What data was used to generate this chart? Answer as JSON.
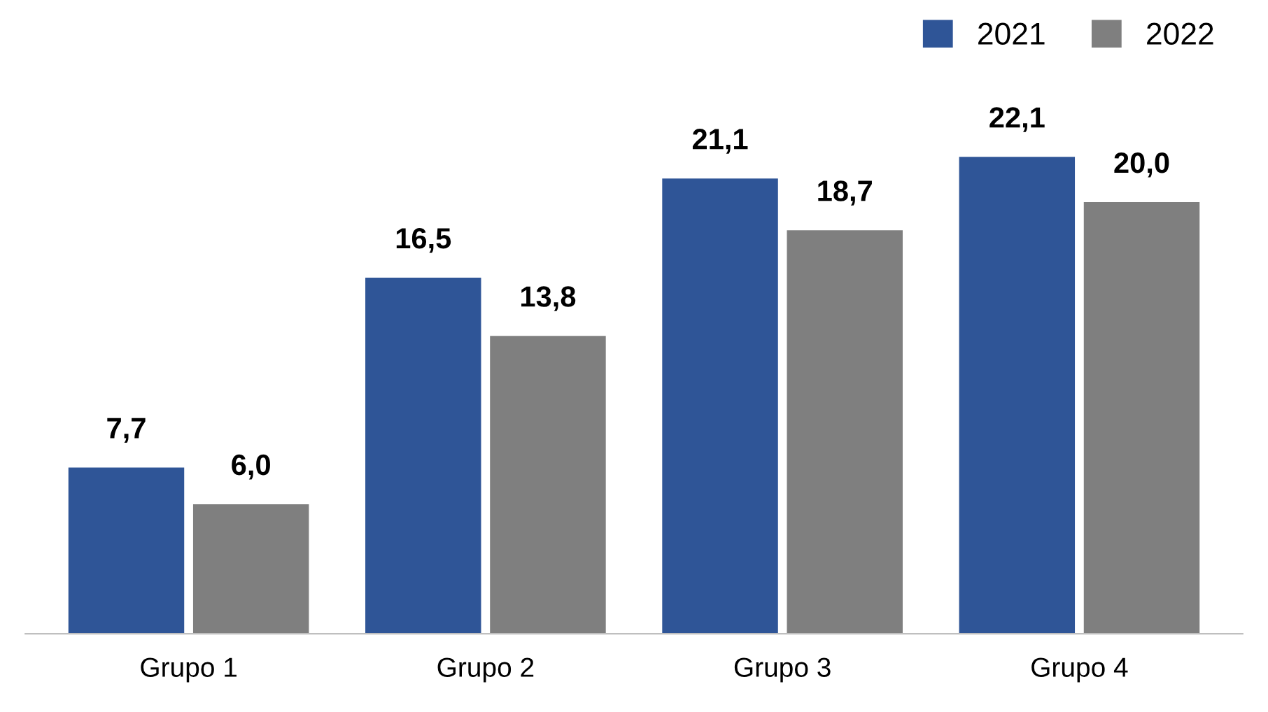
{
  "chart_data": {
    "type": "bar",
    "categories": [
      "Grupo 1",
      "Grupo 2",
      "Grupo 3",
      "Grupo 4"
    ],
    "series": [
      {
        "name": "2021",
        "color": "#2f5597",
        "values": [
          7.7,
          16.5,
          21.1,
          22.1
        ],
        "value_labels": [
          "7,7",
          "16,5",
          "21,1",
          "22,1"
        ]
      },
      {
        "name": "2022",
        "color": "#7f7f7f",
        "values": [
          6.0,
          13.8,
          18.7,
          20.0
        ],
        "value_labels": [
          "6,0",
          "13,8",
          "18,7",
          "20,0"
        ]
      }
    ],
    "legend": "top right",
    "grid": false
  }
}
